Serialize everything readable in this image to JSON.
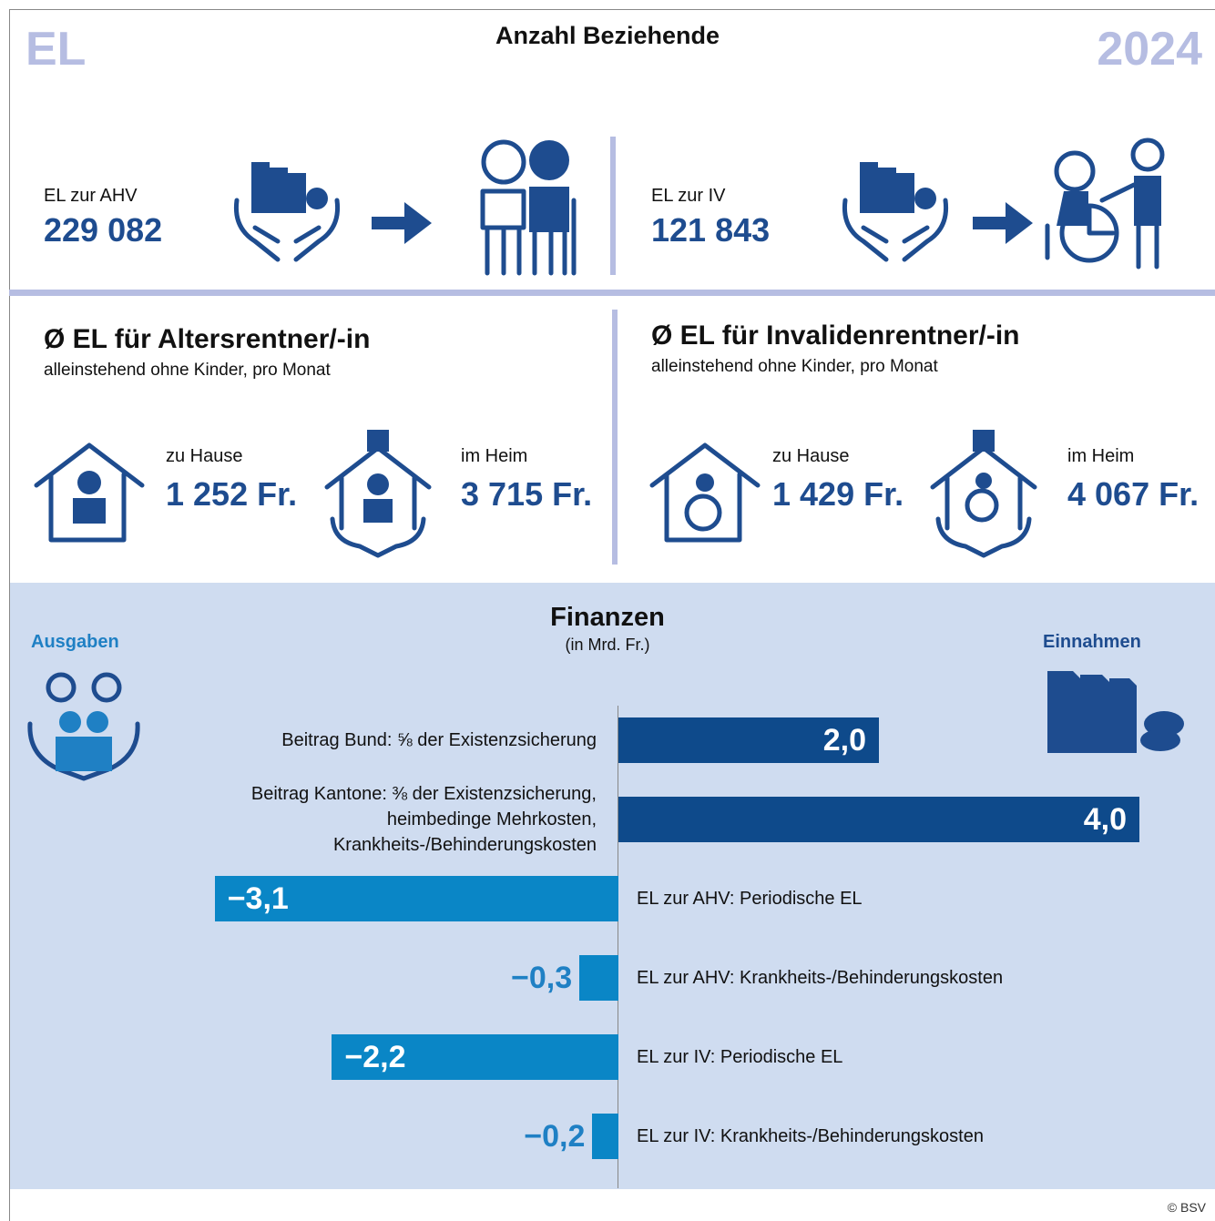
{
  "header": {
    "brand": "EL",
    "title": "Anzahl Beziehende",
    "year": "2024"
  },
  "recipients": [
    {
      "label": "EL zur AHV",
      "count": "229 082"
    },
    {
      "label": "EL zur IV",
      "count": "121 843"
    }
  ],
  "averages": [
    {
      "title": "Ø EL für Altersrentner/-in",
      "subtitle": "alleinstehend ohne Kinder, pro Monat",
      "items": [
        {
          "label": "zu Hause",
          "amount": "1 252 Fr."
        },
        {
          "label": "im Heim",
          "amount": "3 715 Fr."
        }
      ]
    },
    {
      "title": "Ø EL für Invalidenrentner/-in",
      "subtitle": "alleinstehend ohne Kinder, pro Monat",
      "items": [
        {
          "label": "zu Hause",
          "amount": "1 429 Fr."
        },
        {
          "label": "im Heim",
          "amount": "4 067 Fr."
        }
      ]
    }
  ],
  "finance": {
    "left_label": "Ausgaben",
    "right_label": "Einnahmen"
  },
  "chart_data": {
    "type": "bar",
    "orientation": "horizontal",
    "title": "Finanzen",
    "subtitle": "(in Mrd. Fr.)",
    "categories": [
      "Beitrag Bund: ⅝ der Existenzsicherung",
      "Beitrag Kantone: ⅜ der Existenzsicherung,\nheimbedinge Mehrkosten,\nKrankheits-/Behinderungskosten",
      "EL zur AHV: Periodische EL",
      "EL zur AHV: Krankheits-/Behinderungskosten",
      "EL zur IV: Periodische EL",
      "EL zur IV: Krankheits-/Behinderungskosten"
    ],
    "values": [
      2.0,
      4.0,
      -3.1,
      -0.3,
      -2.2,
      -0.2
    ],
    "value_labels": [
      "2,0",
      "4,0",
      "−3,1",
      "−0,3",
      "−2,2",
      "−0,2"
    ],
    "colors": [
      "#0e4a8b",
      "#0e4a8b",
      "#0a86c6",
      "#0a86c6",
      "#0a86c6",
      "#0a86c6"
    ]
  },
  "footer": "© BSV"
}
